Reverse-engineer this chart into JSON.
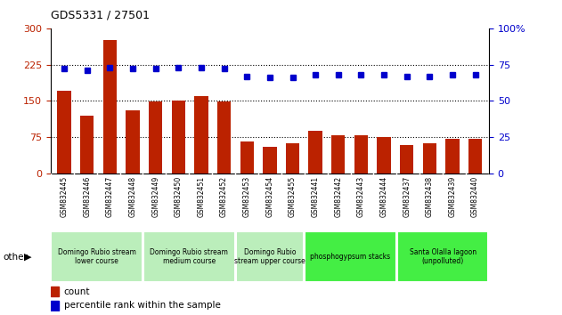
{
  "title": "GDS5331 / 27501",
  "samples": [
    "GSM832445",
    "GSM832446",
    "GSM832447",
    "GSM832448",
    "GSM832449",
    "GSM832450",
    "GSM832451",
    "GSM832452",
    "GSM832453",
    "GSM832454",
    "GSM832455",
    "GSM832441",
    "GSM832442",
    "GSM832443",
    "GSM832444",
    "GSM832437",
    "GSM832438",
    "GSM832439",
    "GSM832440"
  ],
  "counts": [
    170,
    120,
    275,
    130,
    148,
    150,
    160,
    148,
    65,
    55,
    62,
    88,
    78,
    78,
    75,
    58,
    62,
    72,
    72
  ],
  "percentiles": [
    72,
    71,
    73,
    72,
    72,
    73,
    73,
    72,
    67,
    66,
    66,
    68,
    68,
    68,
    68,
    67,
    67,
    68,
    68
  ],
  "groups": [
    {
      "label": "Domingo Rubio stream\nlower course",
      "start": 0,
      "end": 4,
      "color": "#bbeebb"
    },
    {
      "label": "Domingo Rubio stream\nmedium course",
      "start": 4,
      "end": 8,
      "color": "#bbeebb"
    },
    {
      "label": "Domingo Rubio\nstream upper course",
      "start": 8,
      "end": 11,
      "color": "#bbeebb"
    },
    {
      "label": "phosphogypsum stacks",
      "start": 11,
      "end": 15,
      "color": "#44ee44"
    },
    {
      "label": "Santa Olalla lagoon\n(unpolluted)",
      "start": 15,
      "end": 19,
      "color": "#44ee44"
    }
  ],
  "bar_color": "#bb2200",
  "dot_color": "#0000cc",
  "ylim_left": [
    0,
    300
  ],
  "ylim_right": [
    0,
    100
  ],
  "yticks_left": [
    0,
    75,
    150,
    225,
    300
  ],
  "yticks_right": [
    0,
    25,
    50,
    75,
    100
  ],
  "grid_values": [
    75,
    150,
    225
  ],
  "tick_bg": "#c8c8c8",
  "plot_bg": "#ffffff"
}
